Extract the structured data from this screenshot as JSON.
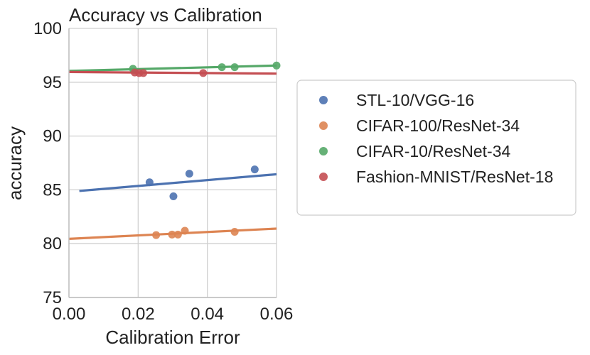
{
  "chart_data": {
    "type": "scatter",
    "title": "Accuracy vs Calibration",
    "xlabel": "Calibration Error",
    "ylabel": "accuracy",
    "xlim": [
      0.0,
      0.06
    ],
    "ylim": [
      75,
      100
    ],
    "x_ticks": [
      0.0,
      0.02,
      0.04,
      0.06
    ],
    "x_tick_labels": [
      "0.00",
      "0.02",
      "0.04",
      "0.06"
    ],
    "y_ticks": [
      75,
      80,
      85,
      90,
      95,
      100
    ],
    "y_tick_labels": [
      "75",
      "80",
      "85",
      "90",
      "95",
      "100"
    ],
    "grid": true,
    "legend_position": "right",
    "series": [
      {
        "name": "STL-10/VGG-16",
        "color": "#4c72b0",
        "x": [
          0.0233,
          0.0302,
          0.0348,
          0.0537
        ],
        "y": [
          85.7,
          84.4,
          86.5,
          86.9
        ],
        "fit_line": {
          "x": [
            0.003,
            0.06
          ],
          "y": [
            84.9,
            86.45
          ]
        }
      },
      {
        "name": "CIFAR-100/ResNet-34",
        "color": "#dd8452",
        "x": [
          0.0252,
          0.0298,
          0.0315,
          0.0335,
          0.0479
        ],
        "y": [
          80.8,
          80.85,
          80.85,
          81.2,
          81.1
        ],
        "fit_line": {
          "x": [
            0.0,
            0.06
          ],
          "y": [
            80.45,
            81.4
          ]
        }
      },
      {
        "name": "CIFAR-10/ResNet-34",
        "color": "#55a868",
        "x": [
          0.0185,
          0.0442,
          0.0479,
          0.06
        ],
        "y": [
          96.25,
          96.4,
          96.4,
          96.55
        ],
        "fit_line": {
          "x": [
            0.0,
            0.06
          ],
          "y": [
            96.05,
            96.55
          ]
        }
      },
      {
        "name": "Fashion-MNIST/ResNet-18",
        "color": "#c44e52",
        "x": [
          0.019,
          0.0203,
          0.0215,
          0.0388
        ],
        "y": [
          95.9,
          95.85,
          95.85,
          95.85
        ],
        "fit_line": {
          "x": [
            0.0,
            0.06
          ],
          "y": [
            95.95,
            95.8
          ]
        }
      }
    ]
  }
}
